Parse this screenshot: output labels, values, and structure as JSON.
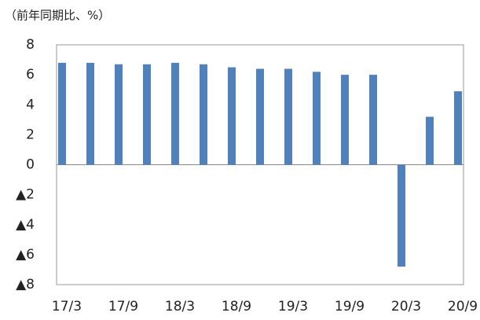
{
  "chart_data": {
    "type": "bar",
    "subtitle": "（前年同期比、%）",
    "categories": [
      "17/3",
      null,
      "17/9",
      null,
      "18/3",
      null,
      "18/9",
      null,
      "19/3",
      null,
      "19/9",
      null,
      "20/3",
      null,
      "20/9"
    ],
    "values": [
      6.8,
      6.8,
      6.7,
      6.7,
      6.8,
      6.7,
      6.5,
      6.4,
      6.4,
      6.2,
      6.0,
      6.0,
      -6.8,
      3.2,
      4.9
    ],
    "color": "#4f81bd",
    "ylim": [
      -8,
      8
    ],
    "yticks": [
      8,
      6,
      4,
      2,
      0,
      {
        "value": -2,
        "label": "▲2"
      },
      {
        "value": -4,
        "label": "▲4"
      },
      {
        "value": -6,
        "label": "▲6"
      },
      {
        "value": -8,
        "label": "▲8"
      }
    ],
    "grid": false
  }
}
